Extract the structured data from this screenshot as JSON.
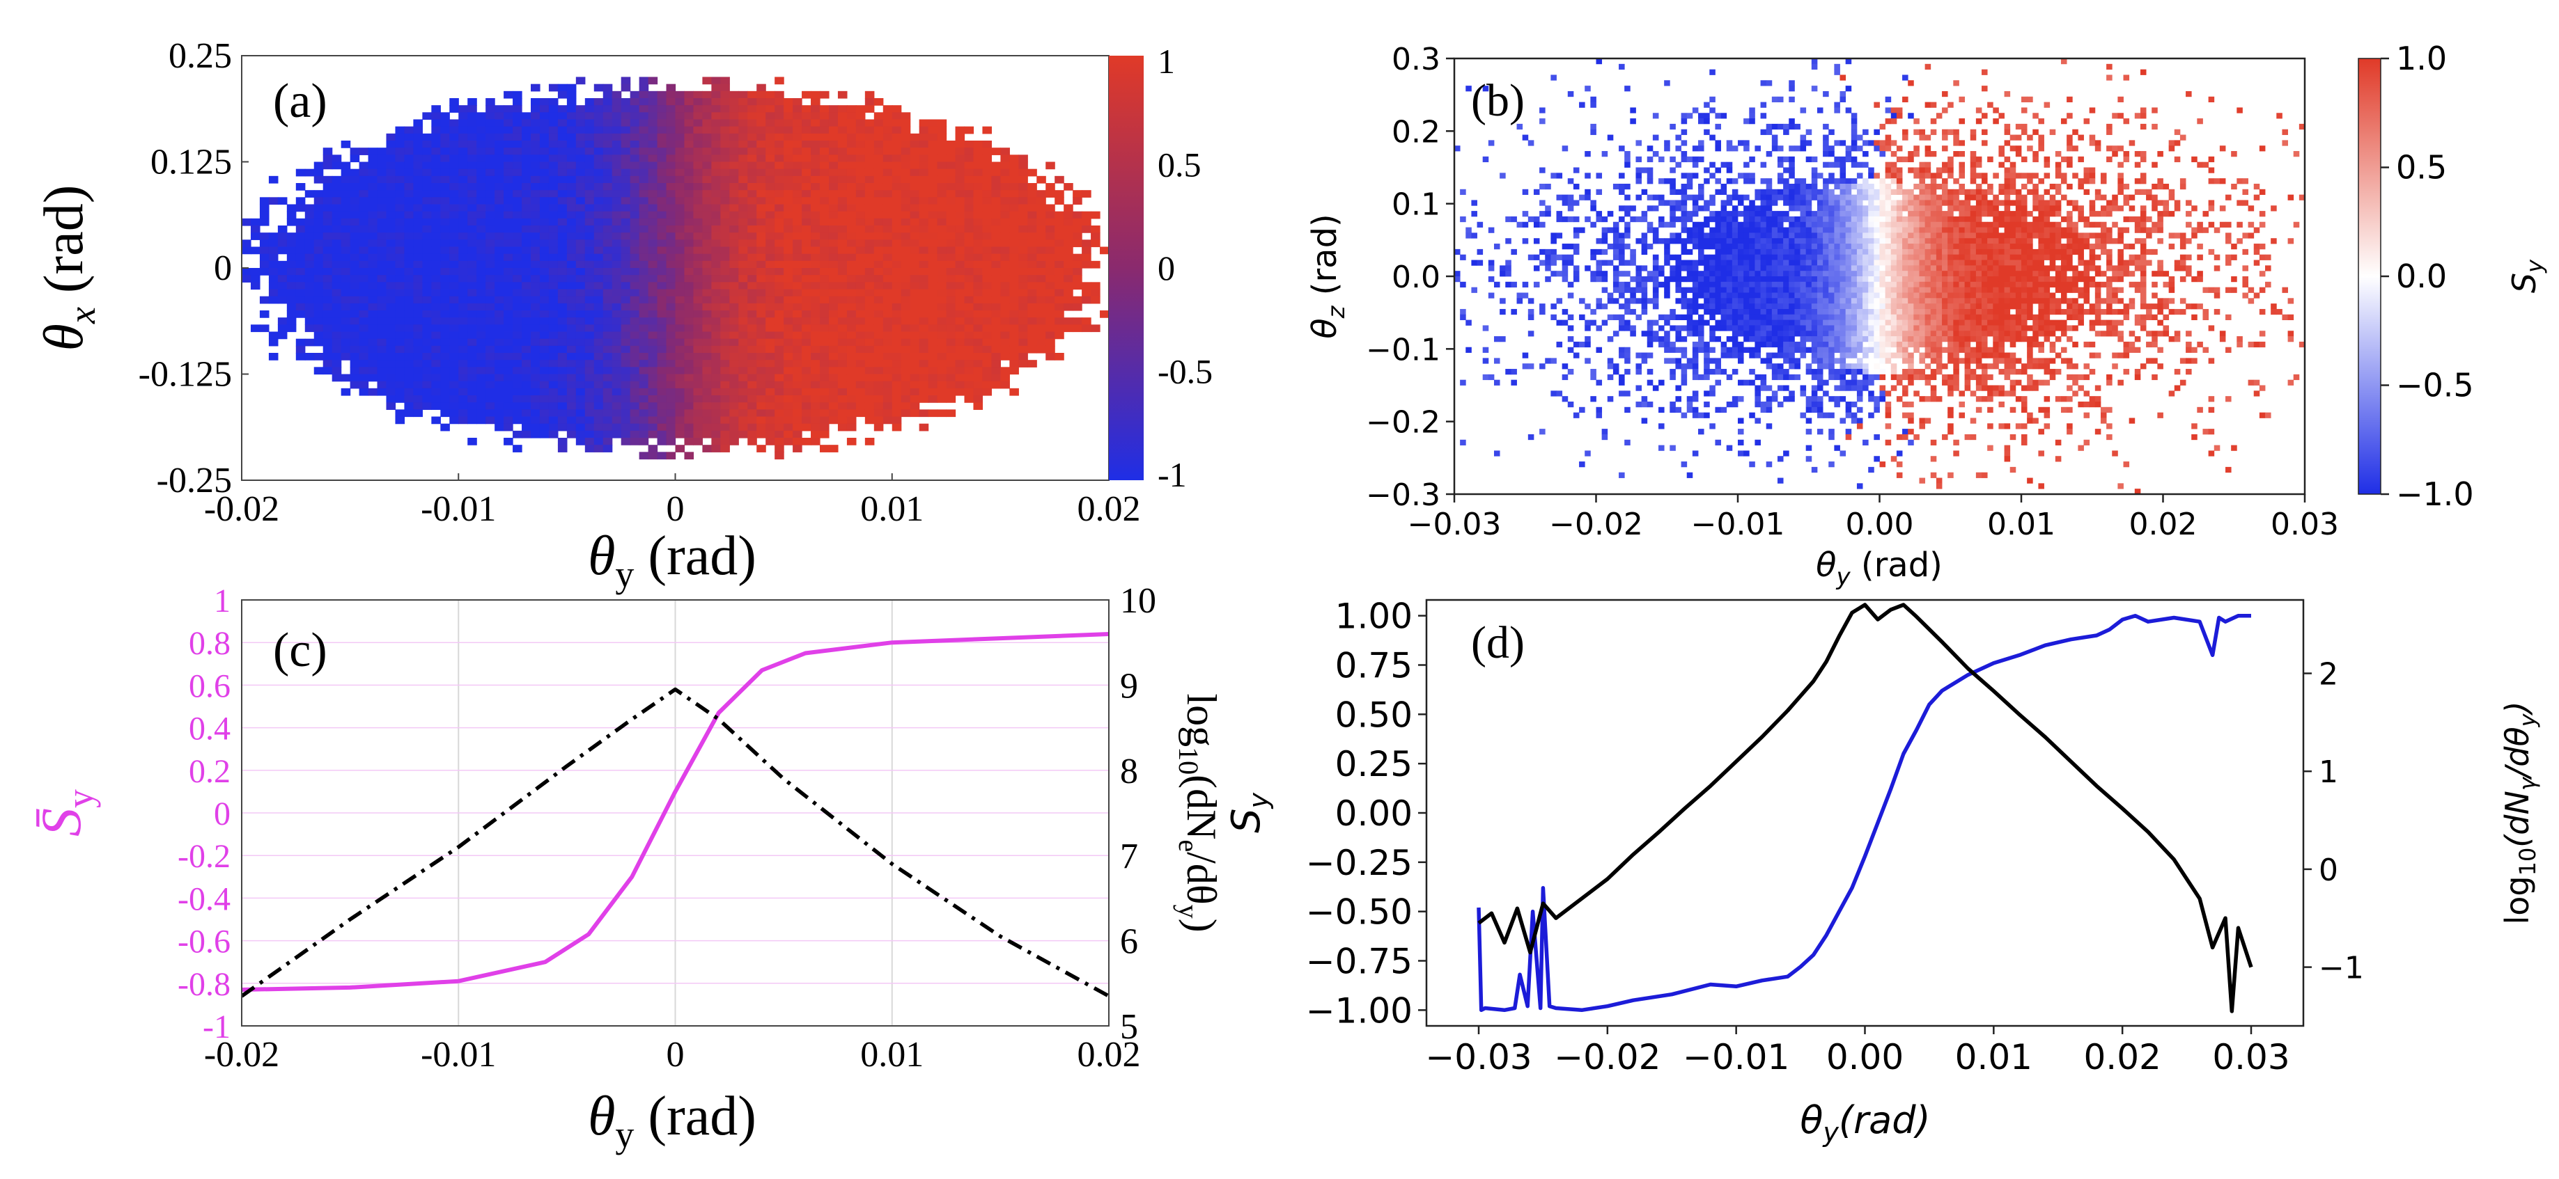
{
  "colors": {
    "red": "#e03a28",
    "blue": "#1f2ee6",
    "magenta": "#e040e8",
    "black": "#000000",
    "line_blue": "#1c1cd8",
    "grid": "#d8d8d8"
  },
  "chart_data": [
    {
      "id": "a",
      "type": "heatmap",
      "panel_label": "(a)",
      "xlabel": "θy (rad)",
      "ylabel": "θx (rad)",
      "xlim": [
        -0.02,
        0.02
      ],
      "ylim": [
        -0.25,
        0.25
      ],
      "xticks": [
        "-0.02",
        "-0.01",
        "0",
        "0.01",
        "0.02"
      ],
      "yticks": [
        "0.25",
        "0.125",
        "0",
        "-0.125",
        "-0.25"
      ],
      "colorbar": {
        "range": [
          -1,
          1
        ],
        "ticks": [
          "1",
          "0.5",
          "0",
          "-0.5",
          "-1"
        ],
        "colors": [
          "#1f2ee6",
          "#8a2a6e",
          "#e03a28"
        ]
      },
      "description_values": {
        "left_mean": -1,
        "right_mean": 1
      }
    },
    {
      "id": "b",
      "type": "heatmap",
      "panel_label": "(b)",
      "xlabel": "θy (rad)",
      "ylabel": "θz (rad)",
      "xlim": [
        -0.03,
        0.03
      ],
      "ylim": [
        -0.3,
        0.3
      ],
      "xticks": [
        "−0.03",
        "−0.02",
        "−0.01",
        "0.00",
        "0.01",
        "0.02",
        "0.03"
      ],
      "yticks": [
        "0.3",
        "0.2",
        "0.1",
        "0.0",
        "−0.1",
        "−0.2",
        "−0.3"
      ],
      "colorbar": {
        "range": [
          -1,
          1
        ],
        "ticks": [
          "1.0",
          "0.5",
          "0.0",
          "−0.5",
          "−1.0"
        ],
        "label": "Sy",
        "colors": [
          "#1f2ee6",
          "#ffffff",
          "#e03a28"
        ]
      }
    },
    {
      "id": "c",
      "type": "line",
      "panel_label": "(c)",
      "xlabel": "θy (rad)",
      "ylabel_left": "S̄y",
      "ylabel_right": "log10(dNe/dθy)",
      "xlim": [
        -0.02,
        0.02
      ],
      "ylim_left": [
        -1,
        1
      ],
      "ylim_right": [
        5,
        10
      ],
      "xticks": [
        "-0.02",
        "-0.01",
        "0",
        "0.01",
        "0.02"
      ],
      "yticks_left": [
        "1",
        "0.8",
        "0.6",
        "0.4",
        "0.2",
        "0",
        "-0.2",
        "-0.4",
        "-0.6",
        "-0.8",
        "-1"
      ],
      "yticks_right": [
        "10",
        "9",
        "8",
        "7",
        "6",
        "5"
      ],
      "series": [
        {
          "name": "S̄y",
          "axis": "left",
          "style": "solid",
          "color": "#e040e8",
          "x": [
            -0.02,
            -0.015,
            -0.01,
            -0.006,
            -0.004,
            -0.002,
            0,
            0.002,
            0.004,
            0.006,
            0.01,
            0.015,
            0.02
          ],
          "values": [
            -0.83,
            -0.82,
            -0.79,
            -0.7,
            -0.57,
            -0.3,
            0.1,
            0.47,
            0.67,
            0.75,
            0.8,
            0.82,
            0.84
          ]
        },
        {
          "name": "log10(dNe/dθy)",
          "axis": "right",
          "style": "dashdot",
          "color": "#000000",
          "x": [
            -0.02,
            -0.015,
            -0.01,
            -0.005,
            -0.002,
            0,
            0.002,
            0.005,
            0.01,
            0.015,
            0.02
          ],
          "values": [
            5.35,
            6.25,
            7.1,
            8.05,
            8.6,
            8.95,
            8.6,
            7.9,
            6.9,
            6.05,
            5.35
          ]
        }
      ]
    },
    {
      "id": "d",
      "type": "line",
      "panel_label": "(d)",
      "xlabel": "θy(rad)",
      "ylabel_left": "Sy",
      "ylabel_right": "log10(dNγ/dθy)",
      "xlim": [
        -0.03,
        0.03
      ],
      "ylim_left": [
        -1.08,
        1.08
      ],
      "ylim_right": [
        -1.6,
        2.75
      ],
      "xticks": [
        "−0.03",
        "−0.02",
        "−0.01",
        "0.00",
        "0.01",
        "0.02",
        "0.03"
      ],
      "yticks_left": [
        "1.00",
        "0.75",
        "0.50",
        "0.25",
        "0.00",
        "−0.25",
        "−0.50",
        "−0.75",
        "−1.00"
      ],
      "yticks_right": [
        "2",
        "1",
        "0",
        "−1"
      ],
      "series": [
        {
          "name": "Sy",
          "axis": "left",
          "color": "#1c1cd8",
          "x": [
            -0.03,
            -0.0298,
            -0.0295,
            -0.028,
            -0.0272,
            -0.0268,
            -0.0262,
            -0.0258,
            -0.0252,
            -0.025,
            -0.0245,
            -0.024,
            -0.022,
            -0.02,
            -0.018,
            -0.015,
            -0.012,
            -0.01,
            -0.008,
            -0.006,
            -0.005,
            -0.004,
            -0.003,
            -0.002,
            -0.001,
            0,
            0.001,
            0.002,
            0.003,
            0.004,
            0.005,
            0.006,
            0.008,
            0.01,
            0.012,
            0.014,
            0.016,
            0.018,
            0.019,
            0.02,
            0.021,
            0.022,
            0.024,
            0.026,
            0.027,
            0.0275,
            0.028,
            0.029,
            0.03
          ],
          "values": [
            -0.48,
            -1.0,
            -0.99,
            -1.0,
            -0.99,
            -0.82,
            -0.98,
            -0.5,
            -0.99,
            -0.38,
            -0.98,
            -0.99,
            -1.0,
            -0.98,
            -0.95,
            -0.92,
            -0.87,
            -0.88,
            -0.85,
            -0.83,
            -0.78,
            -0.72,
            -0.62,
            -0.5,
            -0.38,
            -0.22,
            -0.05,
            0.12,
            0.3,
            0.42,
            0.55,
            0.62,
            0.7,
            0.76,
            0.8,
            0.85,
            0.88,
            0.9,
            0.93,
            0.98,
            1.0,
            0.97,
            0.99,
            0.97,
            0.8,
            0.99,
            0.97,
            1.0,
            1.0
          ]
        },
        {
          "name": "log10(dNγ/dθy)",
          "axis": "right",
          "color": "#000000",
          "x": [
            -0.03,
            -0.029,
            -0.028,
            -0.027,
            -0.026,
            -0.025,
            -0.024,
            -0.022,
            -0.02,
            -0.018,
            -0.016,
            -0.014,
            -0.012,
            -0.01,
            -0.008,
            -0.006,
            -0.004,
            -0.003,
            -0.002,
            -0.001,
            0,
            0.001,
            0.002,
            0.003,
            0.004,
            0.006,
            0.008,
            0.01,
            0.012,
            0.014,
            0.016,
            0.018,
            0.02,
            0.022,
            0.024,
            0.025,
            0.026,
            0.027,
            0.028,
            0.0285,
            0.029,
            0.03
          ],
          "values": [
            -0.55,
            -0.45,
            -0.75,
            -0.4,
            -0.85,
            -0.35,
            -0.5,
            -0.3,
            -0.1,
            0.15,
            0.38,
            0.62,
            0.85,
            1.1,
            1.35,
            1.62,
            1.92,
            2.12,
            2.38,
            2.62,
            2.7,
            2.55,
            2.65,
            2.7,
            2.58,
            2.32,
            2.05,
            1.82,
            1.58,
            1.35,
            1.1,
            0.85,
            0.62,
            0.38,
            0.1,
            -0.1,
            -0.3,
            -0.8,
            -0.5,
            -1.45,
            -0.6,
            -1.0
          ]
        }
      ]
    }
  ]
}
